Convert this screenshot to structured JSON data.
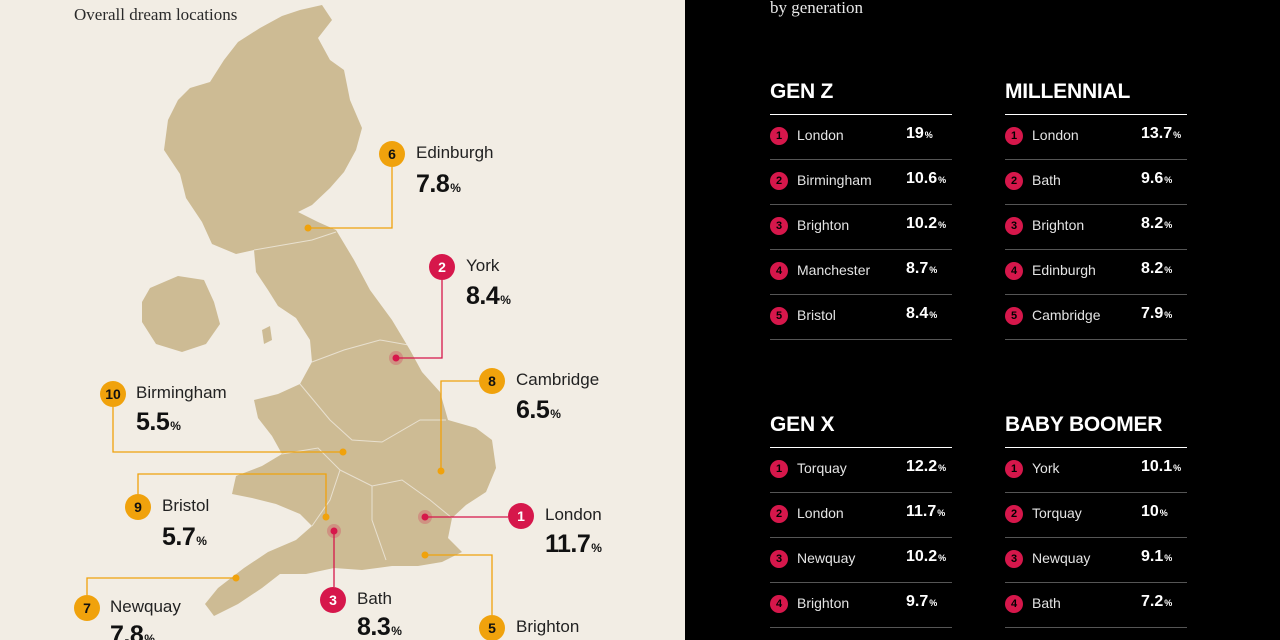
{
  "left_title": "Overall dream locations",
  "right_title": "by generation",
  "colors": {
    "red": "#d6174b",
    "orange": "#f0a20c",
    "land": "#cdbb94",
    "background": "#f2ede4"
  },
  "chart_data": [
    {
      "type": "map",
      "title": "Overall dream locations",
      "unit": "%",
      "cities": [
        {
          "rank": "1",
          "name": "London",
          "value": "11.7",
          "color": "red"
        },
        {
          "rank": "2",
          "name": "York",
          "value": "8.4",
          "color": "red"
        },
        {
          "rank": "3",
          "name": "Bath",
          "value": "8.3",
          "color": "red"
        },
        {
          "rank": "5",
          "name": "Brighton",
          "value": "",
          "color": "orange"
        },
        {
          "rank": "6",
          "name": "Edinburgh",
          "value": "7.8",
          "color": "orange"
        },
        {
          "rank": "7",
          "name": "Newquay",
          "value": "7.8",
          "color": "orange"
        },
        {
          "rank": "8",
          "name": "Cambridge",
          "value": "6.5",
          "color": "orange"
        },
        {
          "rank": "9",
          "name": "Bristol",
          "value": "5.7",
          "color": "orange"
        },
        {
          "rank": "10",
          "name": "Birmingham",
          "value": "5.5",
          "color": "orange"
        }
      ]
    },
    {
      "type": "table",
      "title": "by generation",
      "unit": "%",
      "groups": [
        {
          "name": "GEN Z",
          "rows": [
            {
              "rank": "1",
              "city": "London",
              "value": "19"
            },
            {
              "rank": "2",
              "city": "Birmingham",
              "value": "10.6"
            },
            {
              "rank": "3",
              "city": "Brighton",
              "value": "10.2"
            },
            {
              "rank": "4",
              "city": "Manchester",
              "value": "8.7"
            },
            {
              "rank": "5",
              "city": "Bristol",
              "value": "8.4"
            }
          ]
        },
        {
          "name": "MILLENNIAL",
          "rows": [
            {
              "rank": "1",
              "city": "London",
              "value": "13.7"
            },
            {
              "rank": "2",
              "city": "Bath",
              "value": "9.6"
            },
            {
              "rank": "3",
              "city": "Brighton",
              "value": "8.2"
            },
            {
              "rank": "4",
              "city": "Edinburgh",
              "value": "8.2"
            },
            {
              "rank": "5",
              "city": "Cambridge",
              "value": "7.9"
            }
          ]
        },
        {
          "name": "GEN X",
          "rows": [
            {
              "rank": "1",
              "city": "Torquay",
              "value": "12.2"
            },
            {
              "rank": "2",
              "city": "London",
              "value": "11.7"
            },
            {
              "rank": "3",
              "city": "Newquay",
              "value": "10.2"
            },
            {
              "rank": "4",
              "city": "Brighton",
              "value": "9.7"
            }
          ]
        },
        {
          "name": "BABY BOOMER",
          "rows": [
            {
              "rank": "1",
              "city": "York",
              "value": "10.1"
            },
            {
              "rank": "2",
              "city": "Torquay",
              "value": "10"
            },
            {
              "rank": "3",
              "city": "Newquay",
              "value": "9.1"
            },
            {
              "rank": "4",
              "city": "Bath",
              "value": "7.2"
            }
          ]
        }
      ]
    }
  ]
}
